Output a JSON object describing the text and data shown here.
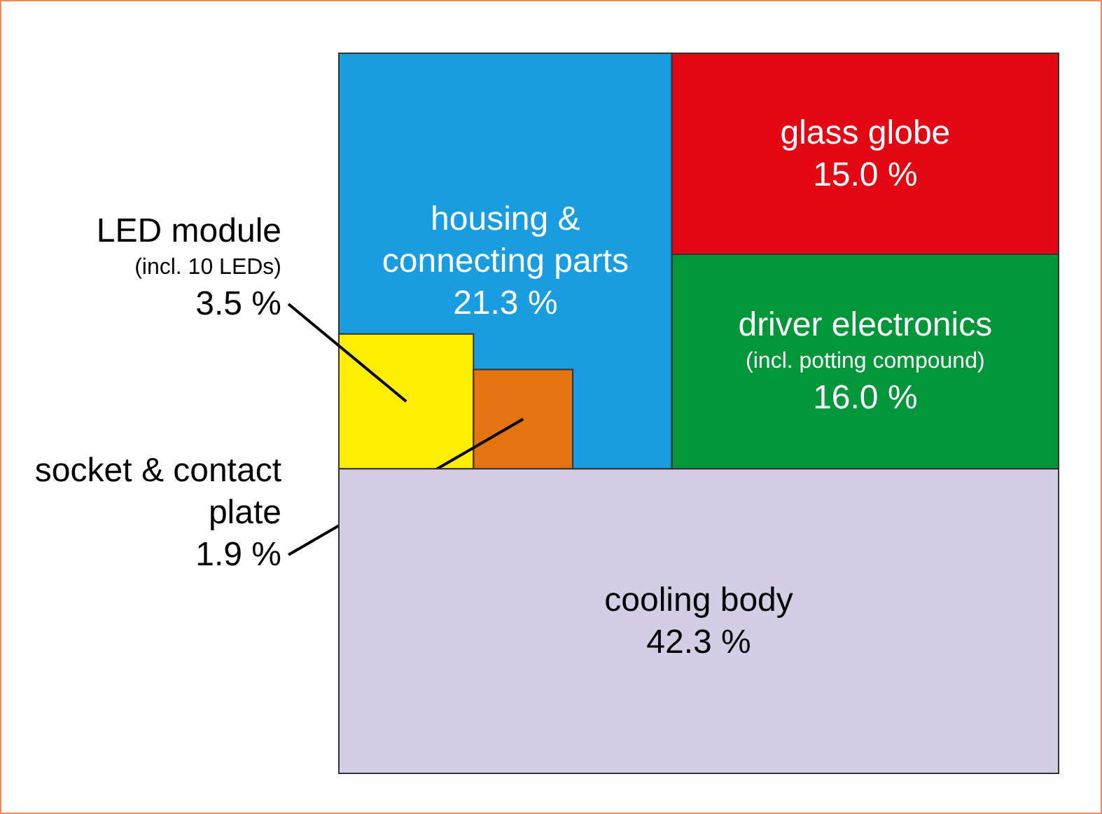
{
  "chart_data": {
    "type": "other",
    "categories": [
      "housing & connecting parts",
      "glass globe",
      "driver electronics (incl. potting compound)",
      "LED module (incl. 10 LEDs)",
      "socket & contact plate",
      "cooling body"
    ],
    "values": [
      21.3,
      15.0,
      16.0,
      3.5,
      1.9,
      42.3
    ],
    "value_labels": [
      "21.3 %",
      "15.0 %",
      "16.0 %",
      "3.5 %",
      "1.9 %",
      "42.3 %"
    ],
    "colors": [
      "#1a9ce0",
      "#e30613",
      "#009639",
      "#ffed00",
      "#e4740f",
      "#d3cee6"
    ]
  }
}
